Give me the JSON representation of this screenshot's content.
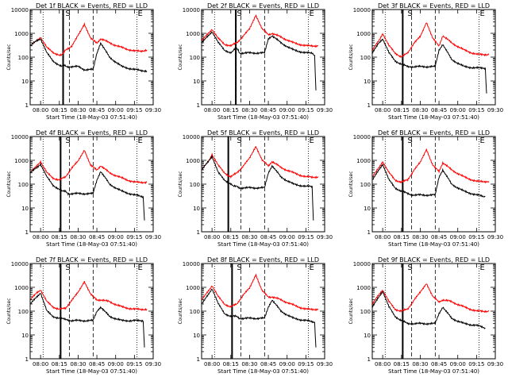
{
  "chart_data": {
    "type": "line",
    "yscale": "log",
    "ylim": [
      1,
      10000
    ],
    "xlim": [
      "07:51:40",
      "09:30:00"
    ],
    "xlabel": "Start Time (18-May-03 07:51:40)",
    "ylabel": "Counts/sec",
    "x_ticks": [
      "08:00",
      "08:15",
      "08:30",
      "08:45",
      "09:00",
      "09:15",
      "09:30"
    ],
    "y_ticks": [
      "1",
      "10",
      "100",
      "1000",
      "10000"
    ],
    "marker_labels": {
      "start": "S",
      "end": "E"
    },
    "colors": {
      "events": "#000000",
      "lld": "#ff0000"
    },
    "series_names": {
      "events": "BLACK = Events",
      "lld": "RED = LLD"
    },
    "panels": [
      {
        "title": "Det 1f BLACK = Events, RED = LLD",
        "solid_line": "08:18",
        "red": {
          "x": [
            "07:52",
            "07:57",
            "08:00",
            "08:05",
            "08:10",
            "08:15",
            "08:17",
            "08:20",
            "08:25",
            "08:30",
            "08:35",
            "08:40",
            "08:45",
            "08:48",
            "08:55",
            "09:05",
            "09:15",
            "09:20",
            "09:25"
          ],
          "y": [
            300,
            500,
            700,
            250,
            160,
            120,
            120,
            200,
            300,
            800,
            2500,
            600,
            400,
            600,
            400,
            250,
            180,
            180,
            200
          ]
        },
        "black": {
          "x": [
            "07:52",
            "07:57",
            "08:00",
            "08:05",
            "08:10",
            "08:15",
            "08:17",
            "08:19",
            "08:21",
            "08:22",
            "08:25",
            "08:30",
            "08:35",
            "08:42",
            "08:45",
            "08:48",
            "08:55",
            "09:05",
            "09:15",
            "09:20",
            "09:25"
          ],
          "y": [
            300,
            500,
            600,
            150,
            70,
            45,
            40,
            45,
            40,
            40,
            40,
            40,
            30,
            30,
            150,
            400,
            100,
            40,
            30,
            28,
            26
          ]
        }
      },
      {
        "title": "Det 2f BLACK = Events, RED = LLD",
        "solid_line": "08:19",
        "red": {
          "x": [
            "07:52",
            "07:57",
            "08:00",
            "08:05",
            "08:10",
            "08:15",
            "08:20",
            "08:25",
            "08:30",
            "08:35",
            "08:40",
            "08:45",
            "08:48",
            "08:55",
            "09:05",
            "09:15",
            "09:22",
            "09:25"
          ],
          "y": [
            500,
            1000,
            1500,
            600,
            350,
            300,
            400,
            800,
            1500,
            6000,
            1500,
            900,
            1000,
            700,
            400,
            300,
            300,
            300
          ]
        },
        "black": {
          "x": [
            "07:52",
            "07:57",
            "08:00",
            "08:05",
            "08:10",
            "08:15",
            "08:17",
            "08:19",
            "08:21",
            "08:22",
            "08:30",
            "08:35",
            "08:42",
            "08:45",
            "08:48",
            "08:55",
            "09:05",
            "09:15",
            "09:20",
            "09:22",
            "09:23"
          ],
          "y": [
            400,
            800,
            1200,
            400,
            200,
            150,
            180,
            250,
            200,
            150,
            150,
            150,
            150,
            600,
            800,
            400,
            200,
            150,
            150,
            120,
            4
          ]
        }
      },
      {
        "title": "Det 3f BLACK = Events, RED = LLD",
        "solid_line": "08:16",
        "red": {
          "x": [
            "07:52",
            "07:57",
            "08:00",
            "08:05",
            "08:10",
            "08:15",
            "08:20",
            "08:25",
            "08:30",
            "08:35",
            "08:40",
            "08:45",
            "08:48",
            "08:55",
            "09:05",
            "09:15",
            "09:25"
          ],
          "y": [
            200,
            500,
            1000,
            300,
            150,
            100,
            150,
            400,
            700,
            3000,
            600,
            300,
            800,
            400,
            200,
            130,
            130
          ]
        },
        "black": {
          "x": [
            "07:52",
            "07:57",
            "08:00",
            "08:05",
            "08:10",
            "08:15",
            "08:20",
            "08:25",
            "08:30",
            "08:35",
            "08:42",
            "08:45",
            "08:48",
            "08:55",
            "09:05",
            "09:15",
            "09:22",
            "09:23"
          ],
          "y": [
            150,
            400,
            600,
            150,
            70,
            50,
            40,
            40,
            40,
            40,
            40,
            200,
            350,
            80,
            40,
            35,
            35,
            3
          ]
        }
      },
      {
        "title": "Det 4f BLACK = Events, RED = LLD",
        "solid_line": "08:16",
        "red": {
          "x": [
            "07:52",
            "07:57",
            "08:00",
            "08:05",
            "08:10",
            "08:15",
            "08:20",
            "08:25",
            "08:30",
            "08:35",
            "08:40",
            "08:45",
            "08:48",
            "08:55",
            "09:05",
            "09:15",
            "09:25"
          ],
          "y": [
            300,
            600,
            900,
            300,
            180,
            150,
            200,
            500,
            900,
            2800,
            600,
            400,
            600,
            300,
            180,
            120,
            120
          ]
        },
        "black": {
          "x": [
            "07:52",
            "07:57",
            "08:00",
            "08:05",
            "08:10",
            "08:15",
            "08:17",
            "08:20",
            "08:22",
            "08:30",
            "08:35",
            "08:42",
            "08:45",
            "08:48",
            "08:55",
            "09:05",
            "09:15",
            "09:22",
            "09:23"
          ],
          "y": [
            300,
            500,
            700,
            200,
            90,
            60,
            50,
            50,
            40,
            40,
            40,
            40,
            150,
            350,
            100,
            50,
            35,
            30,
            3
          ]
        }
      },
      {
        "title": "Det 5f BLACK = Events, RED = LLD",
        "solid_line": "08:13",
        "red": {
          "x": [
            "07:52",
            "07:57",
            "08:00",
            "08:05",
            "08:10",
            "08:15",
            "08:20",
            "08:25",
            "08:30",
            "08:35",
            "08:40",
            "08:45",
            "08:48",
            "08:55",
            "09:05",
            "09:15",
            "09:25"
          ],
          "y": [
            400,
            900,
            1800,
            600,
            300,
            200,
            300,
            600,
            1200,
            4000,
            1000,
            600,
            900,
            500,
            300,
            200,
            200
          ]
        },
        "black": {
          "x": [
            "07:52",
            "07:57",
            "08:00",
            "08:05",
            "08:10",
            "08:15",
            "08:17",
            "08:20",
            "08:22",
            "08:30",
            "08:35",
            "08:42",
            "08:45",
            "08:48",
            "08:55",
            "09:05",
            "09:15",
            "09:20",
            "09:21"
          ],
          "y": [
            400,
            900,
            1500,
            300,
            150,
            100,
            80,
            80,
            70,
            70,
            70,
            70,
            300,
            600,
            200,
            100,
            80,
            80,
            3
          ]
        }
      },
      {
        "title": "Det 6f BLACK = Events, RED = LLD",
        "solid_line": "08:16",
        "red": {
          "x": [
            "07:52",
            "07:57",
            "08:00",
            "08:05",
            "08:10",
            "08:15",
            "08:20",
            "08:25",
            "08:30",
            "08:35",
            "08:40",
            "08:45",
            "08:48",
            "08:55",
            "09:05",
            "09:15",
            "09:25"
          ],
          "y": [
            200,
            500,
            900,
            300,
            150,
            120,
            150,
            400,
            800,
            3000,
            600,
            350,
            800,
            400,
            200,
            130,
            130
          ]
        },
        "black": {
          "x": [
            "07:52",
            "07:57",
            "08:00",
            "08:05",
            "08:10",
            "08:15",
            "08:20",
            "08:25",
            "08:30",
            "08:35",
            "08:42",
            "08:45",
            "08:48",
            "08:55",
            "09:05",
            "09:15",
            "09:22"
          ],
          "y": [
            150,
            400,
            700,
            150,
            70,
            50,
            40,
            35,
            35,
            35,
            35,
            200,
            400,
            100,
            50,
            35,
            30
          ]
        }
      },
      {
        "title": "Det 7f BLACK = Events, RED = LLD",
        "solid_line": "08:16",
        "red": {
          "x": [
            "07:52",
            "07:57",
            "08:00",
            "08:05",
            "08:10",
            "08:15",
            "08:20",
            "08:25",
            "08:30",
            "08:35",
            "08:40",
            "08:45",
            "08:48",
            "08:55",
            "09:05",
            "09:15",
            "09:25"
          ],
          "y": [
            300,
            600,
            800,
            250,
            150,
            120,
            130,
            300,
            600,
            1800,
            500,
            300,
            300,
            250,
            150,
            120,
            120
          ]
        },
        "black": {
          "x": [
            "07:52",
            "07:57",
            "08:00",
            "08:05",
            "08:10",
            "08:15",
            "08:20",
            "08:25",
            "08:30",
            "08:35",
            "08:42",
            "08:45",
            "08:48",
            "08:55",
            "09:05",
            "09:15",
            "09:22",
            "09:23"
          ],
          "y": [
            200,
            400,
            600,
            100,
            60,
            50,
            45,
            40,
            40,
            40,
            40,
            100,
            150,
            60,
            40,
            40,
            40,
            3
          ]
        }
      },
      {
        "title": "Det 8f BLACK = Events, RED = LLD",
        "solid_line": "08:16",
        "red": {
          "x": [
            "07:52",
            "07:57",
            "08:00",
            "08:05",
            "08:10",
            "08:15",
            "08:20",
            "08:25",
            "08:30",
            "08:35",
            "08:40",
            "08:45",
            "08:48",
            "08:55",
            "09:05",
            "09:15",
            "09:25"
          ],
          "y": [
            300,
            700,
            1200,
            400,
            200,
            150,
            200,
            500,
            900,
            3500,
            700,
            400,
            400,
            300,
            180,
            120,
            120
          ]
        },
        "black": {
          "x": [
            "07:52",
            "07:57",
            "08:00",
            "08:05",
            "08:10",
            "08:15",
            "08:17",
            "08:20",
            "08:22",
            "08:30",
            "08:35",
            "08:42",
            "08:45",
            "08:48",
            "08:55",
            "09:05",
            "09:15",
            "09:22",
            "09:23"
          ],
          "y": [
            200,
            500,
            900,
            200,
            80,
            60,
            60,
            60,
            50,
            50,
            50,
            50,
            150,
            300,
            100,
            50,
            40,
            35,
            3
          ]
        }
      },
      {
        "title": "Det 9f BLACK = Events, RED = LLD",
        "solid_line": "08:16",
        "red": {
          "x": [
            "07:52",
            "07:57",
            "08:00",
            "08:05",
            "08:10",
            "08:15",
            "08:20",
            "08:25",
            "08:30",
            "08:35",
            "08:40",
            "08:45",
            "08:48",
            "08:55",
            "09:05",
            "09:15",
            "09:25"
          ],
          "y": [
            200,
            500,
            800,
            250,
            120,
            100,
            120,
            300,
            600,
            1500,
            400,
            250,
            300,
            250,
            150,
            100,
            100
          ]
        },
        "black": {
          "x": [
            "07:52",
            "07:57",
            "08:00",
            "08:05",
            "08:10",
            "08:15",
            "08:20",
            "08:25",
            "08:30",
            "08:35",
            "08:42",
            "08:45",
            "08:48",
            "08:55",
            "09:05",
            "09:15",
            "09:22"
          ],
          "y": [
            150,
            400,
            700,
            150,
            60,
            40,
            30,
            30,
            30,
            30,
            30,
            80,
            150,
            50,
            30,
            25,
            20
          ]
        }
      }
    ]
  }
}
